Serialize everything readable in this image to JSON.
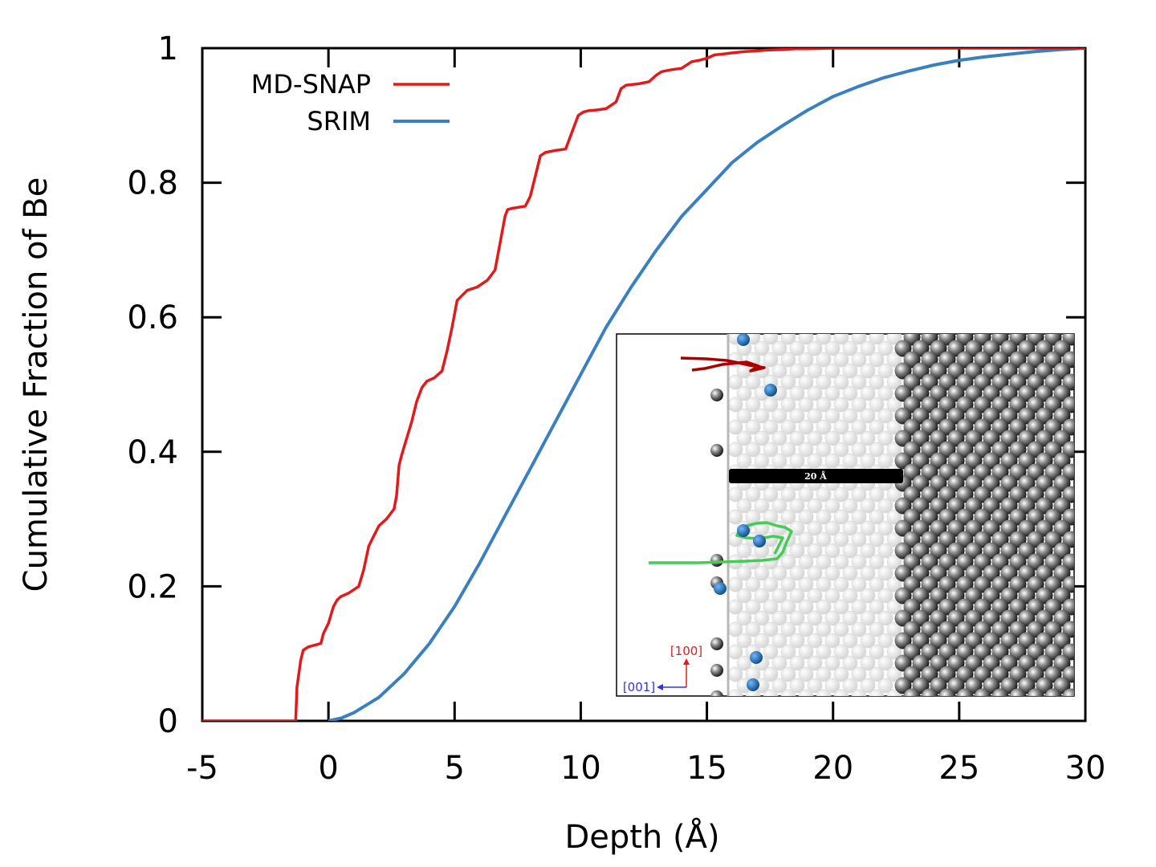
{
  "chart_data": {
    "type": "line",
    "title": "",
    "xlabel": "Depth (Å)",
    "ylabel": "Cumulative Fraction of Be",
    "xlim": [
      -5,
      30
    ],
    "ylim": [
      0,
      1
    ],
    "xticks": [
      -5,
      0,
      5,
      10,
      15,
      20,
      25,
      30
    ],
    "xtick_labels": [
      "-5",
      "0",
      "5",
      "10",
      "15",
      "20",
      "25",
      "30"
    ],
    "yticks": [
      0,
      0.2,
      0.4,
      0.6,
      0.8,
      1
    ],
    "ytick_labels": [
      "0",
      "0.2",
      "0.4",
      "0.6",
      "0.8",
      "1"
    ],
    "grid": false,
    "legend": "top-left",
    "series": [
      {
        "name": "MD-SNAP",
        "color": "#e31a1c",
        "x": [
          -5,
          -1.3,
          -1.25,
          -1.1,
          -1.0,
          -0.8,
          -0.3,
          -0.2,
          0.0,
          0.2,
          0.35,
          0.5,
          0.8,
          1.2,
          1.4,
          1.6,
          1.8,
          2.0,
          2.3,
          2.6,
          2.7,
          2.8,
          2.9,
          3.1,
          3.3,
          3.5,
          3.7,
          3.9,
          4.2,
          4.5,
          4.7,
          4.9,
          5.1,
          5.5,
          5.9,
          6.3,
          6.6,
          6.8,
          7.0,
          7.1,
          7.3,
          7.8,
          8.0,
          8.2,
          8.4,
          8.6,
          9.0,
          9.4,
          9.7,
          9.9,
          10.1,
          10.3,
          10.6,
          11.0,
          11.4,
          11.6,
          11.8,
          12.3,
          12.7,
          13.0,
          13.2,
          13.6,
          14.0,
          14.4,
          14.7,
          15.0,
          15.3,
          15.6,
          16.0,
          16.5,
          17.0,
          17.3,
          18.0,
          18.5,
          19.0,
          20.0,
          21.0,
          23.0,
          25.0,
          30.0
        ],
        "y": [
          0,
          0,
          0.05,
          0.09,
          0.105,
          0.11,
          0.115,
          0.13,
          0.145,
          0.17,
          0.18,
          0.185,
          0.19,
          0.2,
          0.225,
          0.26,
          0.275,
          0.29,
          0.3,
          0.315,
          0.335,
          0.38,
          0.395,
          0.42,
          0.445,
          0.475,
          0.495,
          0.505,
          0.51,
          0.52,
          0.55,
          0.585,
          0.625,
          0.64,
          0.645,
          0.655,
          0.67,
          0.71,
          0.75,
          0.76,
          0.762,
          0.765,
          0.78,
          0.81,
          0.84,
          0.845,
          0.848,
          0.85,
          0.88,
          0.9,
          0.905,
          0.907,
          0.908,
          0.91,
          0.92,
          0.94,
          0.945,
          0.947,
          0.95,
          0.96,
          0.965,
          0.968,
          0.97,
          0.98,
          0.982,
          0.985,
          0.99,
          0.991,
          0.993,
          0.995,
          0.996,
          0.997,
          0.998,
          0.999,
          0.999,
          1.0,
          1.0,
          1.0,
          1.0,
          1.0
        ]
      },
      {
        "name": "SRIM",
        "color": "#3a7fbe",
        "x": [
          0.0,
          0.5,
          1.0,
          2.0,
          3.0,
          4.0,
          5.0,
          6.0,
          7.0,
          8.0,
          9.0,
          10.0,
          11.0,
          12.0,
          13.0,
          14.0,
          15.0,
          16.0,
          17.0,
          18.0,
          19.0,
          20.0,
          21.0,
          22.0,
          23.0,
          24.0,
          25.0,
          26.0,
          27.0,
          28.0,
          29.0,
          30.0
        ],
        "y": [
          0.0,
          0.004,
          0.012,
          0.035,
          0.07,
          0.115,
          0.17,
          0.235,
          0.305,
          0.375,
          0.445,
          0.515,
          0.585,
          0.645,
          0.7,
          0.75,
          0.79,
          0.83,
          0.86,
          0.885,
          0.908,
          0.928,
          0.943,
          0.956,
          0.966,
          0.975,
          0.982,
          0.987,
          0.991,
          0.995,
          0.998,
          1.0
        ]
      }
    ]
  },
  "inset": {
    "scale_bar_label": "20 Å",
    "axis_up_label": "[100]",
    "axis_left_label": "[001]",
    "axis_up_color": "#e31a1c",
    "axis_left_color": "#3333dd",
    "trajectory_colors": [
      "#aa0000",
      "#44cc55"
    ],
    "be_atom_color": "#1f77b4"
  }
}
